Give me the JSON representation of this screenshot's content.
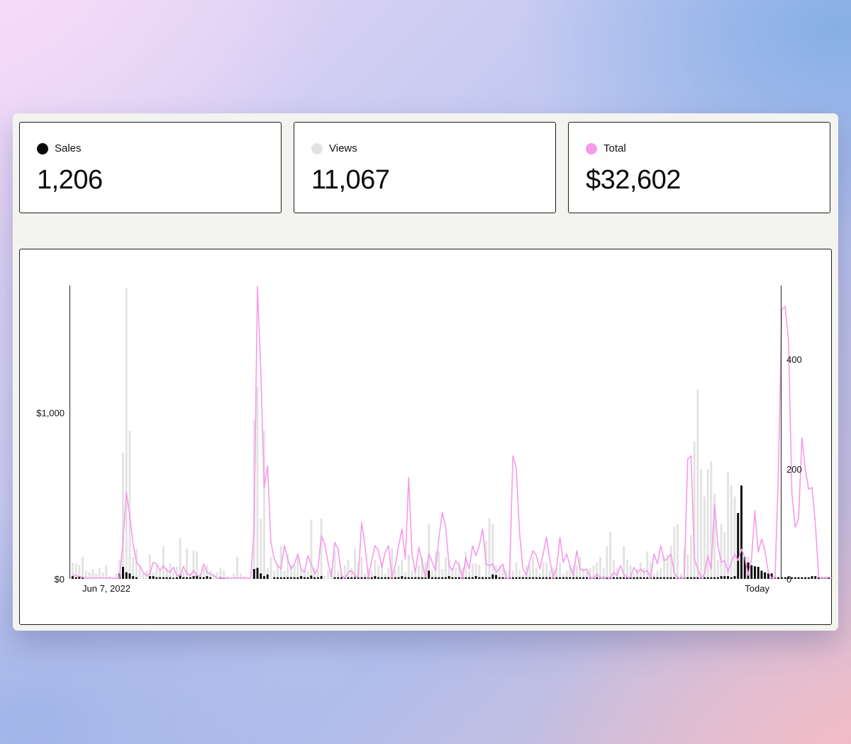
{
  "stats": [
    {
      "label": "Sales",
      "value": "1,206",
      "color": "#0a0a0a"
    },
    {
      "label": "Views",
      "value": "11,067",
      "color": "#e3e3e3"
    },
    {
      "label": "Total",
      "value": "$32,602",
      "color": "#f79ae9"
    }
  ],
  "chart_data": {
    "type": "bar",
    "x_start_label": "Jun 7, 2022",
    "x_end_label": "Today",
    "left_axis": {
      "ylim": [
        0,
        1765
      ],
      "ticks": [
        {
          "value": 0,
          "label": "$0"
        },
        {
          "value": 1000,
          "label": "$1,000"
        }
      ]
    },
    "right_axis": {
      "ylim": [
        0,
        534
      ],
      "ticks": [
        {
          "value": 0,
          "label": "0"
        },
        {
          "value": 200,
          "label": "200"
        },
        {
          "value": 400,
          "label": "400"
        }
      ]
    },
    "series": [
      {
        "name": "Views",
        "axis": "right",
        "color": "#e3e3e3",
        "values": [
          30,
          28,
          25,
          40,
          15,
          12,
          18,
          10,
          20,
          12,
          25,
          5,
          3,
          10,
          35,
          230,
          530,
          270,
          40,
          55,
          25,
          10,
          15,
          45,
          12,
          25,
          15,
          60,
          20,
          28,
          12,
          22,
          75,
          15,
          55,
          10,
          52,
          50,
          10,
          20,
          25,
          15,
          10,
          12,
          20,
          15,
          5,
          0,
          10,
          40,
          10,
          5,
          0,
          0,
          290,
          350,
          110,
          270,
          20,
          40,
          15,
          25,
          60,
          15,
          45,
          25,
          25,
          40,
          20,
          15,
          15,
          108,
          20,
          15,
          110,
          5,
          15,
          20,
          50,
          15,
          10,
          25,
          35,
          20,
          55,
          30,
          40,
          10,
          20,
          15,
          35,
          25,
          30,
          10,
          20,
          55,
          15,
          25,
          35,
          12,
          45,
          15,
          15,
          25,
          40,
          30,
          100,
          15,
          50,
          50,
          18,
          40,
          35,
          20,
          20,
          30,
          20,
          50,
          15,
          28,
          28,
          25,
          5,
          70,
          110,
          100,
          25,
          25,
          20,
          15,
          18,
          15,
          30,
          15,
          8,
          25,
          25,
          40,
          20,
          10,
          30,
          30,
          15,
          20,
          20,
          30,
          10,
          15,
          25,
          25,
          25,
          40,
          20,
          15,
          20,
          25,
          30,
          40,
          20,
          60,
          85,
          35,
          20,
          5,
          60,
          35,
          25,
          10,
          18,
          30,
          20,
          50,
          30,
          10,
          15,
          20,
          40,
          45,
          60,
          95,
          100,
          10,
          55,
          45,
          80,
          250,
          345,
          200,
          150,
          200,
          215,
          155,
          35,
          100,
          85,
          195,
          170,
          150,
          110,
          35,
          40,
          40,
          25,
          10,
          15,
          15,
          10,
          5,
          8,
          5,
          3
        ]
      },
      {
        "name": "Sales",
        "axis": "right",
        "color": "#0a0a0a",
        "values": [
          5,
          3,
          5,
          3,
          0,
          0,
          0,
          0,
          0,
          0,
          0,
          0,
          0,
          0,
          10,
          22,
          12,
          10,
          5,
          3,
          0,
          0,
          0,
          5,
          5,
          3,
          3,
          3,
          3,
          3,
          2,
          3,
          8,
          3,
          3,
          3,
          5,
          6,
          3,
          3,
          5,
          3,
          0,
          0,
          3,
          2,
          0,
          0,
          0,
          0,
          0,
          0,
          0,
          0,
          18,
          20,
          10,
          5,
          8,
          0,
          3,
          3,
          3,
          3,
          3,
          3,
          3,
          3,
          5,
          3,
          3,
          6,
          3,
          3,
          5,
          0,
          0,
          0,
          3,
          3,
          3,
          3,
          3,
          3,
          3,
          3,
          3,
          3,
          3,
          3,
          5,
          3,
          3,
          3,
          3,
          3,
          3,
          3,
          5,
          3,
          3,
          3,
          3,
          3,
          3,
          3,
          15,
          3,
          3,
          3,
          3,
          3,
          5,
          3,
          3,
          3,
          3,
          3,
          3,
          3,
          5,
          3,
          3,
          3,
          3,
          8,
          7,
          3,
          3,
          3,
          3,
          3,
          3,
          3,
          3,
          3,
          3,
          3,
          3,
          3,
          3,
          3,
          3,
          3,
          3,
          3,
          3,
          3,
          3,
          3,
          3,
          3,
          3,
          3,
          3,
          3,
          3,
          3,
          3,
          3,
          3,
          3,
          3,
          3,
          3,
          3,
          3,
          3,
          3,
          3,
          3,
          3,
          3,
          3,
          3,
          3,
          3,
          3,
          3,
          3,
          3,
          3,
          3,
          3,
          3,
          3,
          3,
          3,
          3,
          3,
          3,
          3,
          3,
          5,
          5,
          5,
          3,
          5,
          120,
          170,
          40,
          30,
          25,
          23,
          22,
          15,
          12,
          10,
          10,
          3,
          3,
          3,
          3,
          3,
          3,
          3,
          3,
          3,
          3,
          3,
          5,
          5,
          3,
          3,
          3,
          3
        ]
      },
      {
        "name": "Total",
        "axis": "left",
        "type": "line",
        "color": "#f79ae9",
        "values": [
          25,
          20,
          15,
          10,
          5,
          5,
          5,
          5,
          5,
          5,
          5,
          5,
          5,
          5,
          5,
          230,
          520,
          380,
          210,
          100,
          80,
          40,
          20,
          30,
          100,
          90,
          50,
          80,
          50,
          40,
          70,
          20,
          20,
          75,
          30,
          20,
          50,
          20,
          15,
          90,
          40,
          30,
          20,
          5,
          5,
          5,
          5,
          5,
          5,
          5,
          5,
          5,
          5,
          5,
          300,
          1760,
          1250,
          550,
          680,
          220,
          120,
          80,
          60,
          200,
          120,
          60,
          90,
          150,
          60,
          40,
          140,
          90,
          30,
          60,
          260,
          210,
          100,
          10,
          220,
          180,
          20,
          5,
          40,
          50,
          20,
          10,
          340,
          200,
          5,
          110,
          200,
          170,
          70,
          160,
          200,
          5,
          80,
          200,
          300,
          120,
          610,
          150,
          40,
          190,
          100,
          10,
          150,
          100,
          50,
          250,
          400,
          310,
          80,
          50,
          110,
          80,
          5,
          130,
          60,
          200,
          140,
          200,
          300,
          90,
          80,
          90,
          40,
          60,
          90,
          5,
          5,
          740,
          670,
          270,
          60,
          20,
          110,
          170,
          140,
          60,
          150,
          250,
          110,
          5,
          70,
          250,
          100,
          150,
          80,
          20,
          170,
          60,
          50,
          60,
          5,
          5,
          30,
          5,
          5,
          10,
          5,
          40,
          20,
          80,
          30,
          10,
          10,
          70,
          35,
          60,
          40,
          50,
          5,
          150,
          90,
          200,
          110,
          120,
          150,
          40,
          5,
          5,
          5,
          720,
          740,
          120,
          60,
          5,
          30,
          140,
          60,
          450,
          200,
          100,
          110,
          40,
          100,
          150,
          110,
          180,
          130,
          20,
          120,
          410,
          160,
          240,
          170,
          40,
          5,
          5,
          650,
          1620,
          1640,
          1440,
          520,
          310,
          360,
          850,
          660,
          540,
          550,
          330,
          10,
          5,
          5,
          10,
          5,
          20,
          200,
          60,
          90,
          60,
          5
        ]
      }
    ]
  }
}
